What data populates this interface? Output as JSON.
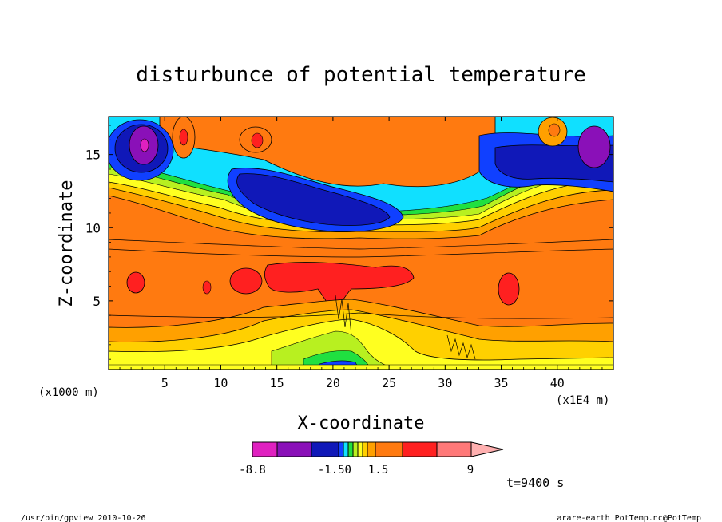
{
  "chart_data": {
    "type": "heatmap",
    "title": "disturbunce of potential temperature",
    "xlabel": "X-coordinate",
    "ylabel": "Z-coordinate",
    "y_unit_note": "(x1000 m)",
    "x_unit_note": "(x1E4 m)",
    "xlim": [
      0,
      45
    ],
    "ylim": [
      0.3,
      17.6
    ],
    "x_ticks": [
      5,
      10,
      15,
      20,
      25,
      30,
      35,
      40
    ],
    "y_ticks": [
      5,
      10,
      15
    ],
    "time_label": "t=9400 s",
    "colorbar": {
      "labels": [
        {
          "value": -8.8,
          "text": "-8.8"
        },
        {
          "value": -1.5,
          "text": "-1.50"
        },
        {
          "value": 1.5,
          "text": "1.5"
        },
        {
          "value": 9,
          "text": "9"
        }
      ],
      "bins": [
        {
          "label": "magenta",
          "color": "#e020c0"
        },
        {
          "label": "purple",
          "color": "#8a10b8"
        },
        {
          "label": "dark-blue",
          "color": "#1018b8"
        },
        {
          "label": "blue",
          "color": "#1040ff"
        },
        {
          "label": "cyan",
          "color": "#10e0ff"
        },
        {
          "label": "green",
          "color": "#20e040"
        },
        {
          "label": "yellow-green",
          "color": "#b8f020"
        },
        {
          "label": "yellow",
          "color": "#ffff20"
        },
        {
          "label": "gold",
          "color": "#ffd000"
        },
        {
          "label": "amber",
          "color": "#ffa000"
        },
        {
          "label": "orange",
          "color": "#ff7a10"
        },
        {
          "label": "red",
          "color": "#ff2020"
        },
        {
          "label": "salmon",
          "color": "#ff7878"
        },
        {
          "label": "pink",
          "color": "#ffb0b0"
        }
      ]
    },
    "regions": [
      {
        "name": "upper-blue-anomaly",
        "x_range": [
          10,
          26
        ],
        "z_range": [
          10.5,
          14
        ]
      },
      {
        "name": "mid-red-core",
        "x_range": [
          11,
          27
        ],
        "z_range": [
          5,
          8
        ]
      },
      {
        "name": "surface-yellow-band",
        "x_range": [
          0,
          45
        ],
        "z_range": [
          0.3,
          3
        ]
      }
    ]
  },
  "footer": {
    "left": "/usr/bin/gpview  2010-10-26",
    "right": "arare-earth_PotTemp.nc@PotTemp"
  }
}
